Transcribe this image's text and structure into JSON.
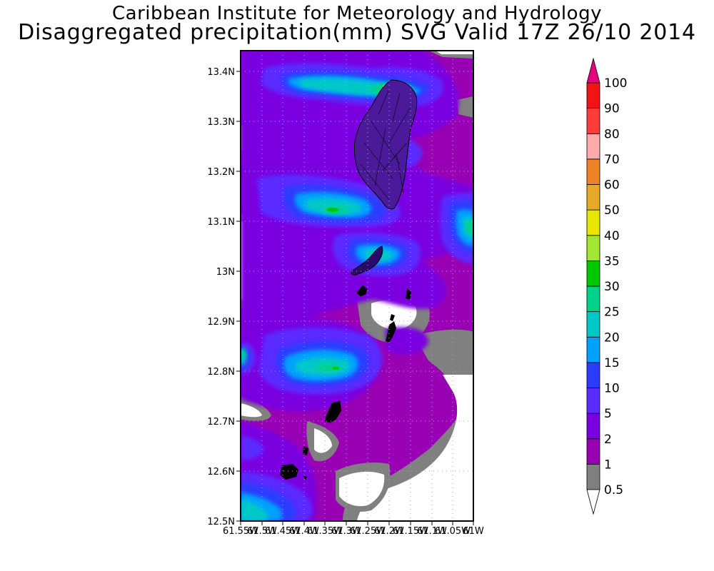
{
  "header": {
    "title_line1": "Caribbean Institute for Meteorology and Hydrology",
    "title_line2": "Disaggregated precipitation(mm) SVG Valid 17Z 26/10 2014"
  },
  "map": {
    "region": "St. Vincent and the Grenadines",
    "lon_ticks": [
      "61.55W",
      "61.5W",
      "61.45W",
      "61.4W",
      "61.35W",
      "61.3W",
      "61.25W",
      "61.2W",
      "61.15W",
      "61.1W",
      "61.05W",
      "61W"
    ],
    "lat_ticks": [
      "13.4N",
      "13.3N",
      "13.2N",
      "13.1N",
      "13N",
      "12.9N",
      "12.8N",
      "12.7N",
      "12.6N",
      "12.5N"
    ]
  },
  "colorbar": {
    "levels": [
      "0.5",
      "1",
      "2",
      "5",
      "10",
      "15",
      "20",
      "25",
      "30",
      "35",
      "40",
      "50",
      "60",
      "70",
      "80",
      "90",
      "100"
    ],
    "colors": [
      "#808080",
      "#9900b3",
      "#7a00e0",
      "#5a2cff",
      "#2c3cff",
      "#00a0ff",
      "#00c8c8",
      "#00d28c",
      "#00c800",
      "#a0e632",
      "#e6e600",
      "#e6aa28",
      "#f08228",
      "#ffaaaa",
      "#ff3c3c",
      "#f01414",
      "#e6007d"
    ]
  }
}
